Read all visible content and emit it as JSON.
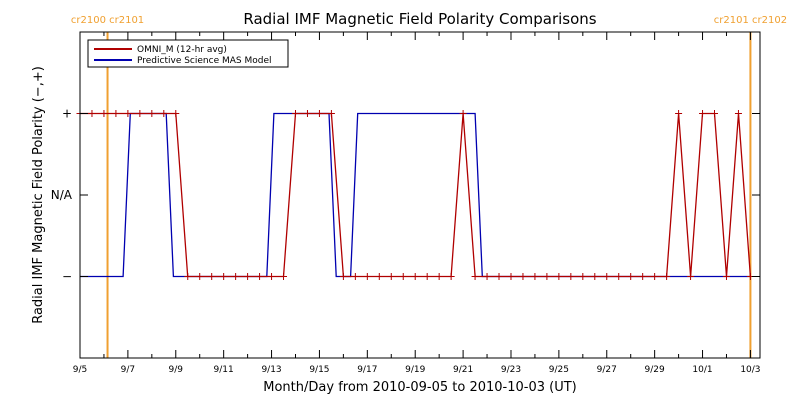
{
  "chart_data": {
    "type": "line",
    "title": "Radial IMF Magnetic Field Polarity Comparisons",
    "xlabel": "Month/Day from 2010-09-05 to 2010-10-03 (UT)",
    "ylabel": "Radial IMF Magnetic Field Polarity (−,+)",
    "xlim": [
      0,
      28.4
    ],
    "ylim": [
      -2,
      2
    ],
    "x_ticks": [
      {
        "x": 0,
        "label": "9/5"
      },
      {
        "x": 2,
        "label": "9/7"
      },
      {
        "x": 4,
        "label": "9/9"
      },
      {
        "x": 6,
        "label": "9/11"
      },
      {
        "x": 8,
        "label": "9/13"
      },
      {
        "x": 10,
        "label": "9/15"
      },
      {
        "x": 12,
        "label": "9/17"
      },
      {
        "x": 14,
        "label": "9/19"
      },
      {
        "x": 16,
        "label": "9/21"
      },
      {
        "x": 18,
        "label": "9/23"
      },
      {
        "x": 20,
        "label": "9/25"
      },
      {
        "x": 22,
        "label": "9/27"
      },
      {
        "x": 24,
        "label": "9/29"
      },
      {
        "x": 26,
        "label": "10/1"
      },
      {
        "x": 28,
        "label": "10/3"
      }
    ],
    "y_ticks": [
      {
        "y": 1,
        "label": "+"
      },
      {
        "y": 0,
        "label": "N/A"
      },
      {
        "y": -1,
        "label": "−"
      }
    ],
    "legend": {
      "placement": "top-left"
    },
    "carrington_markers": [
      {
        "x": 1.15,
        "labels": [
          "cr2100",
          "cr2101"
        ]
      },
      {
        "x": 28.0,
        "labels": [
          "cr2101",
          "cr2102"
        ]
      }
    ],
    "series": [
      {
        "name": "OMNI_M (12-hr avg)",
        "color": "#b00000",
        "marker": "+",
        "x": [
          0,
          0.5,
          1,
          1.5,
          2,
          2.5,
          3,
          3.5,
          4,
          4.5,
          5,
          5.5,
          6,
          6.5,
          7,
          7.5,
          8,
          8.5,
          9,
          9.5,
          10,
          10.5,
          11,
          11.5,
          12,
          12.5,
          13,
          13.5,
          14,
          14.5,
          15,
          15.5,
          16,
          16.5,
          17,
          17.5,
          18,
          18.5,
          19,
          19.5,
          20,
          20.5,
          21,
          21.5,
          22,
          22.5,
          23,
          23.5,
          24,
          24.5,
          25,
          25.5,
          26,
          26.5,
          27,
          27.5,
          28
        ],
        "values": [
          1,
          1,
          1,
          1,
          1,
          1,
          1,
          1,
          1,
          -1,
          -1,
          -1,
          -1,
          -1,
          -1,
          -1,
          -1,
          -1,
          1,
          1,
          1,
          1,
          -1,
          -1,
          -1,
          -1,
          -1,
          -1,
          -1,
          -1,
          -1,
          -1,
          1,
          -1,
          -1,
          -1,
          -1,
          -1,
          -1,
          -1,
          -1,
          -1,
          -1,
          -1,
          -1,
          -1,
          -1,
          -1,
          -1,
          -1,
          1,
          -1,
          1,
          1,
          -1,
          1,
          -1
        ]
      },
      {
        "name": "Predictive Science MAS Model",
        "color": "#0000b0",
        "x": [
          0,
          1.8,
          2.1,
          3.6,
          3.9,
          7.8,
          8.1,
          10.4,
          10.7,
          11.3,
          11.6,
          16.5,
          16.8,
          28
        ],
        "values": [
          -1,
          -1,
          1,
          1,
          -1,
          -1,
          1,
          1,
          -1,
          -1,
          1,
          1,
          -1,
          -1
        ]
      }
    ]
  }
}
